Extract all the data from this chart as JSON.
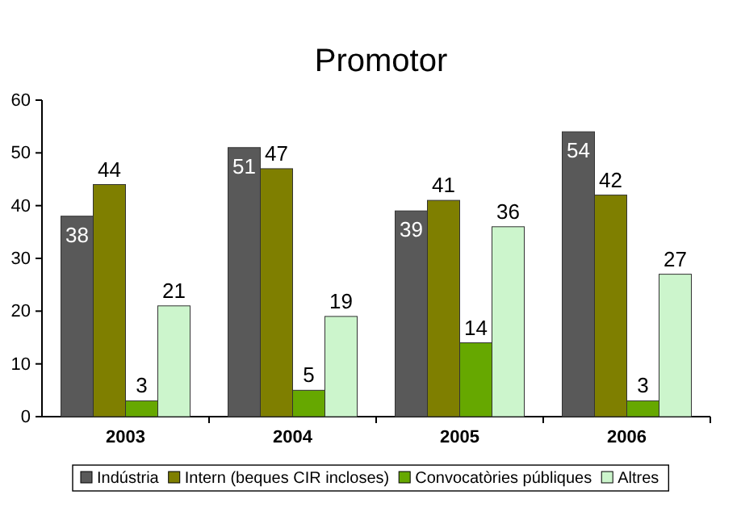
{
  "chart_data": {
    "type": "bar",
    "title": "Promotor",
    "categories": [
      "2003",
      "2004",
      "2005",
      "2006"
    ],
    "series": [
      {
        "name": "Indústria",
        "color": "#595959",
        "values": [
          38,
          51,
          39,
          54
        ]
      },
      {
        "name": "Intern (beques CIR incloses)",
        "color": "#7f7f00",
        "values": [
          44,
          47,
          41,
          42
        ]
      },
      {
        "name": "Convocatòries públiques",
        "color": "#66a800",
        "values": [
          3,
          5,
          14,
          3
        ]
      },
      {
        "name": "Altres",
        "color": "#ccf5cc",
        "values": [
          21,
          19,
          36,
          27
        ]
      }
    ],
    "ylim": [
      0,
      60
    ],
    "yticks": [
      0,
      10,
      20,
      30,
      40,
      50,
      60
    ],
    "grid": false,
    "legend": "bottom",
    "data_labels": true
  }
}
